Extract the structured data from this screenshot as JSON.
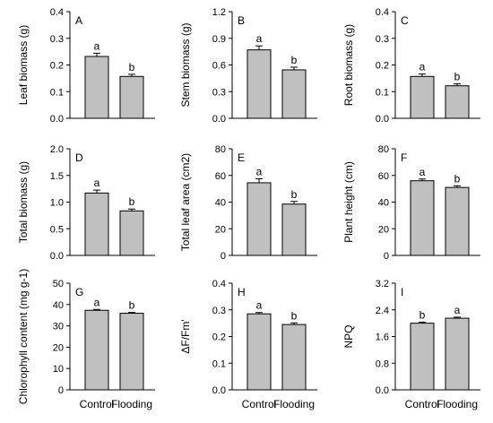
{
  "chart_data": [
    {
      "type": "bar",
      "panel": "A",
      "ylabel": "Leaf biomass (g)",
      "ylim": [
        0,
        0.4
      ],
      "yticks": [
        "0.0",
        "0.1",
        "0.2",
        "0.3",
        "0.4"
      ],
      "categories": [
        "Control",
        "Flooding"
      ],
      "values": [
        0.232,
        0.157
      ],
      "errors": [
        0.012,
        0.008
      ],
      "sig": [
        "a",
        "b"
      ],
      "bar_color": "#c0c0c0"
    },
    {
      "type": "bar",
      "panel": "B",
      "ylabel": "Stem biomass (g)",
      "ylim": [
        0,
        1.2
      ],
      "yticks": [
        "0.0",
        "0.3",
        "0.6",
        "0.9",
        "1.2"
      ],
      "categories": [
        "Control",
        "Flooding"
      ],
      "values": [
        0.77,
        0.545
      ],
      "errors": [
        0.045,
        0.03
      ],
      "sig": [
        "a",
        "b"
      ],
      "bar_color": "#c0c0c0"
    },
    {
      "type": "bar",
      "panel": "C",
      "ylabel": "Root biomass (g)",
      "ylim": [
        0,
        0.4
      ],
      "yticks": [
        "0.0",
        "0.1",
        "0.2",
        "0.3",
        "0.4"
      ],
      "categories": [
        "Control",
        "Flooding"
      ],
      "values": [
        0.157,
        0.122
      ],
      "errors": [
        0.009,
        0.007
      ],
      "sig": [
        "a",
        "b"
      ],
      "bar_color": "#c0c0c0"
    },
    {
      "type": "bar",
      "panel": "D",
      "ylabel": "Total biomass (g)",
      "ylim": [
        0,
        2.0
      ],
      "yticks": [
        "0.0",
        "0.5",
        "1.0",
        "1.5",
        "2.0"
      ],
      "categories": [
        "Control",
        "Flooding"
      ],
      "values": [
        1.17,
        0.835
      ],
      "errors": [
        0.055,
        0.035
      ],
      "sig": [
        "a",
        "b"
      ],
      "bar_color": "#c0c0c0"
    },
    {
      "type": "bar",
      "panel": "E",
      "ylabel": "Total leaf area (cm2)",
      "ylim": [
        0,
        80
      ],
      "yticks": [
        "0",
        "20",
        "40",
        "60",
        "80"
      ],
      "categories": [
        "Control",
        "Flooding"
      ],
      "values": [
        54.5,
        38.5
      ],
      "errors": [
        3.0,
        2.0
      ],
      "sig": [
        "a",
        "b"
      ],
      "bar_color": "#c0c0c0"
    },
    {
      "type": "bar",
      "panel": "F",
      "ylabel": "Plant height (cm)",
      "ylim": [
        0,
        80
      ],
      "yticks": [
        "0",
        "20",
        "40",
        "60",
        "80"
      ],
      "categories": [
        "Control",
        "Flooding"
      ],
      "values": [
        56.0,
        51.0
      ],
      "errors": [
        1.3,
        1.2
      ],
      "sig": [
        "a",
        "b"
      ],
      "bar_color": "#c0c0c0"
    },
    {
      "type": "bar",
      "panel": "G",
      "ylabel": "Chlorophyll content (mg g-1)",
      "ylim": [
        0,
        50
      ],
      "yticks": [
        "0",
        "10",
        "20",
        "30",
        "40",
        "50"
      ],
      "categories": [
        "Control",
        "Flooding"
      ],
      "values": [
        37.3,
        35.9
      ],
      "errors": [
        0.4,
        0.4
      ],
      "sig": [
        "a",
        "b"
      ],
      "bar_color": "#c0c0c0"
    },
    {
      "type": "bar",
      "panel": "H",
      "ylabel": "ΔF/Fm'",
      "ylim": [
        0,
        0.4
      ],
      "yticks": [
        "0.0",
        "0.1",
        "0.2",
        "0.3",
        "0.4"
      ],
      "categories": [
        "Control",
        "Flooding"
      ],
      "values": [
        0.285,
        0.245
      ],
      "errors": [
        0.005,
        0.006
      ],
      "sig": [
        "a",
        "b"
      ],
      "bar_color": "#c0c0c0"
    },
    {
      "type": "bar",
      "panel": "I",
      "ylabel": "NPQ",
      "ylim": [
        0,
        3.2
      ],
      "yticks": [
        "0.0",
        "0.8",
        "1.6",
        "2.4",
        "3.2"
      ],
      "categories": [
        "Control",
        "Flooding"
      ],
      "values": [
        2.0,
        2.15
      ],
      "errors": [
        0.03,
        0.03
      ],
      "sig": [
        "b",
        "a"
      ],
      "bar_color": "#c0c0c0"
    }
  ]
}
